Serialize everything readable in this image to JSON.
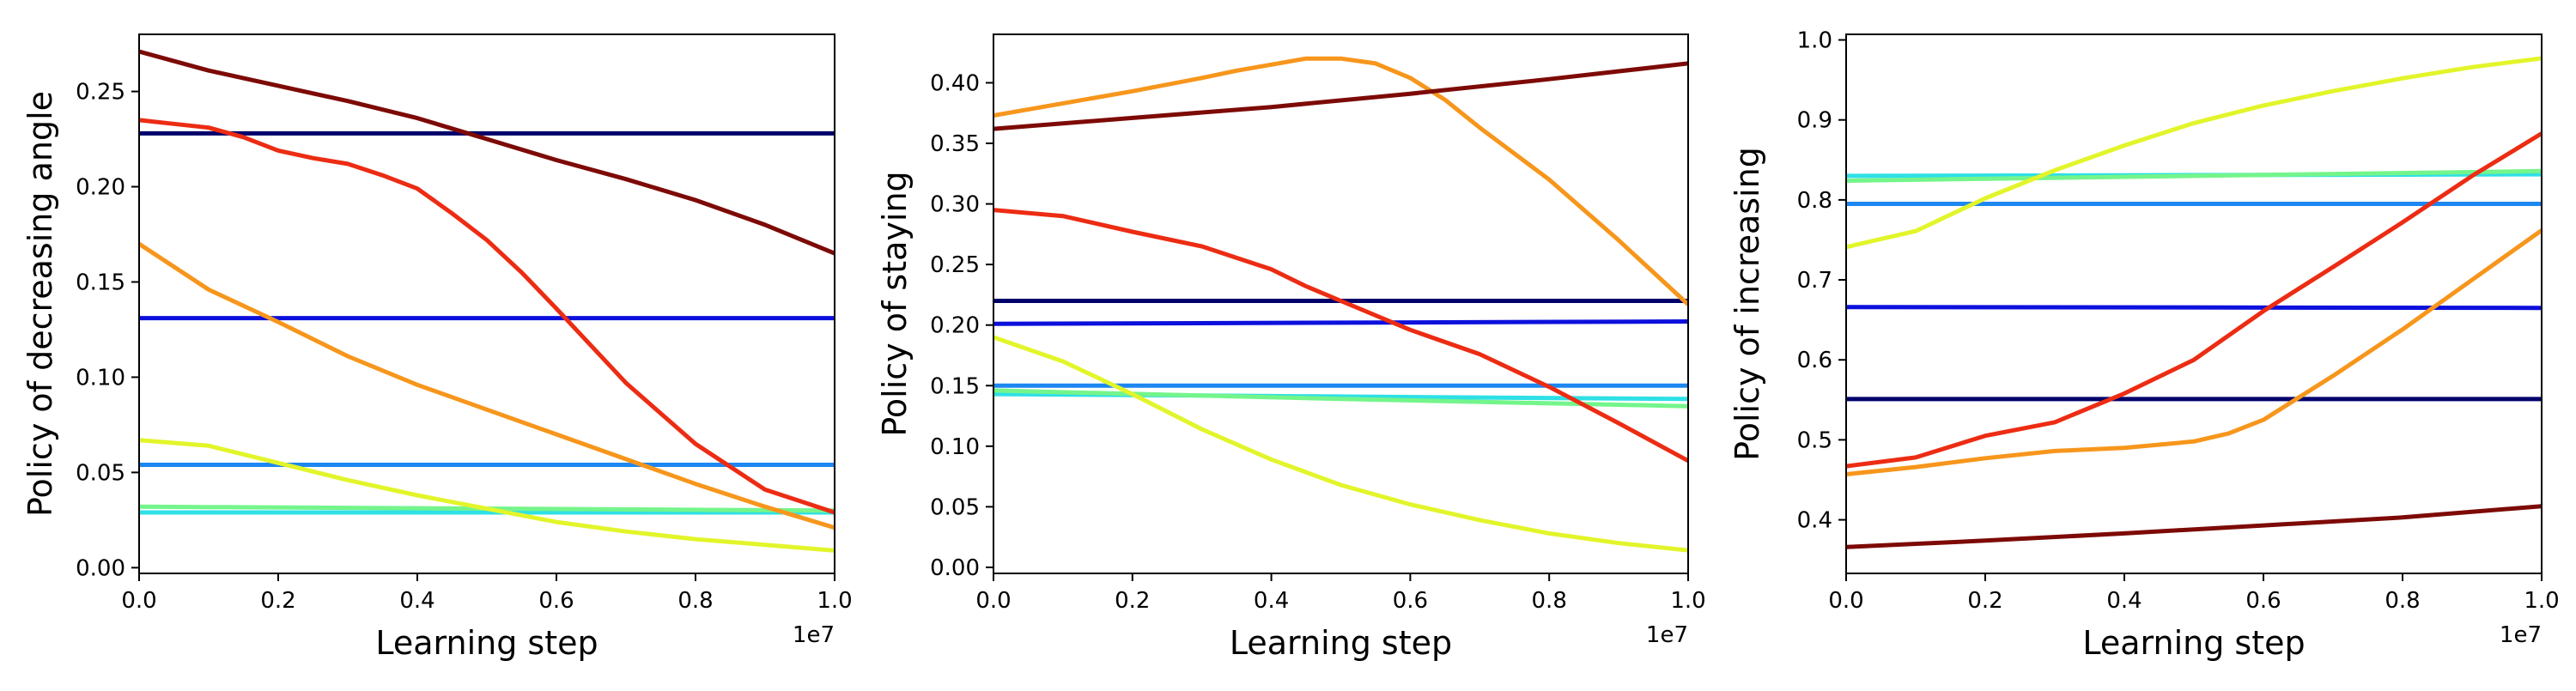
{
  "chart_data": [
    {
      "type": "line",
      "title": "",
      "xlabel": "Learning step",
      "ylabel": "Policy of decreasing angle",
      "x_offset_label": "1e7",
      "xlim": [
        0,
        1.0
      ],
      "ylim": [
        -0.003,
        0.28
      ],
      "xticks": [
        "0.0",
        "0.2",
        "0.4",
        "0.6",
        "0.8",
        "1.0"
      ],
      "yticks": [
        "0.00",
        "0.05",
        "0.10",
        "0.15",
        "0.20",
        "0.25"
      ],
      "grid": false,
      "series": [
        {
          "color": "#00006b",
          "x": [
            0,
            1.0
          ],
          "y": [
            0.228,
            0.228
          ]
        },
        {
          "color": "#0c10dc",
          "x": [
            0,
            1.0
          ],
          "y": [
            0.131,
            0.131
          ]
        },
        {
          "color": "#1d87f2",
          "x": [
            0,
            1.0
          ],
          "y": [
            0.054,
            0.054
          ]
        },
        {
          "color": "#2ee0e6",
          "x": [
            0,
            1.0
          ],
          "y": [
            0.029,
            0.029
          ]
        },
        {
          "color": "#74f58b",
          "x": [
            0,
            1.0
          ],
          "y": [
            0.032,
            0.03
          ]
        },
        {
          "color": "#e2f52a",
          "x": [
            0,
            0.1,
            0.2,
            0.3,
            0.4,
            0.5,
            0.6,
            0.7,
            0.8,
            0.9,
            1.0
          ],
          "y": [
            0.067,
            0.064,
            0.055,
            0.046,
            0.038,
            0.031,
            0.024,
            0.019,
            0.015,
            0.012,
            0.009
          ]
        },
        {
          "color": "#f7961c",
          "x": [
            0,
            0.1,
            0.2,
            0.3,
            0.4,
            0.5,
            0.6,
            0.7,
            0.8,
            0.9,
            1.0
          ],
          "y": [
            0.17,
            0.146,
            0.129,
            0.111,
            0.096,
            0.083,
            0.07,
            0.057,
            0.044,
            0.032,
            0.021
          ]
        },
        {
          "color": "#ec2c13",
          "x": [
            0,
            0.05,
            0.1,
            0.15,
            0.2,
            0.25,
            0.3,
            0.35,
            0.4,
            0.45,
            0.5,
            0.55,
            0.6,
            0.7,
            0.8,
            0.9,
            1.0
          ],
          "y": [
            0.235,
            0.233,
            0.231,
            0.226,
            0.219,
            0.215,
            0.212,
            0.206,
            0.199,
            0.186,
            0.172,
            0.155,
            0.136,
            0.097,
            0.065,
            0.041,
            0.029
          ]
        },
        {
          "color": "#7d0a06",
          "x": [
            0,
            0.1,
            0.2,
            0.3,
            0.4,
            0.5,
            0.6,
            0.7,
            0.8,
            0.9,
            1.0
          ],
          "y": [
            0.271,
            0.261,
            0.253,
            0.245,
            0.236,
            0.225,
            0.214,
            0.204,
            0.193,
            0.18,
            0.165
          ]
        }
      ]
    },
    {
      "type": "line",
      "title": "",
      "xlabel": "Learning step",
      "ylabel": "Policy of staying",
      "x_offset_label": "1e7",
      "xlim": [
        0,
        1.0
      ],
      "ylim": [
        -0.005,
        0.44
      ],
      "xticks": [
        "0.0",
        "0.2",
        "0.4",
        "0.6",
        "0.8",
        "1.0"
      ],
      "yticks": [
        "0.00",
        "0.05",
        "0.10",
        "0.15",
        "0.20",
        "0.25",
        "0.30",
        "0.35",
        "0.40"
      ],
      "grid": false,
      "series": [
        {
          "color": "#00006b",
          "x": [
            0,
            1.0
          ],
          "y": [
            0.22,
            0.22
          ]
        },
        {
          "color": "#0c10dc",
          "x": [
            0,
            1.0
          ],
          "y": [
            0.201,
            0.203
          ]
        },
        {
          "color": "#1d87f2",
          "x": [
            0,
            1.0
          ],
          "y": [
            0.15,
            0.15
          ]
        },
        {
          "color": "#2ee0e6",
          "x": [
            0,
            1.0
          ],
          "y": [
            0.143,
            0.139
          ]
        },
        {
          "color": "#74f58b",
          "x": [
            0,
            0.5,
            1.0
          ],
          "y": [
            0.146,
            0.139,
            0.133
          ]
        },
        {
          "color": "#e2f52a",
          "x": [
            0,
            0.1,
            0.2,
            0.3,
            0.4,
            0.5,
            0.6,
            0.7,
            0.8,
            0.9,
            1.0
          ],
          "y": [
            0.19,
            0.17,
            0.143,
            0.114,
            0.089,
            0.068,
            0.052,
            0.039,
            0.028,
            0.02,
            0.014
          ]
        },
        {
          "color": "#f7961c",
          "x": [
            0,
            0.1,
            0.2,
            0.3,
            0.35,
            0.4,
            0.45,
            0.5,
            0.55,
            0.6,
            0.65,
            0.7,
            0.8,
            0.9,
            1.0
          ],
          "y": [
            0.373,
            0.383,
            0.393,
            0.404,
            0.41,
            0.415,
            0.42,
            0.42,
            0.416,
            0.404,
            0.386,
            0.363,
            0.32,
            0.27,
            0.217
          ]
        },
        {
          "color": "#ec2c13",
          "x": [
            0,
            0.1,
            0.2,
            0.3,
            0.4,
            0.45,
            0.5,
            0.6,
            0.7,
            0.8,
            0.9,
            1.0
          ],
          "y": [
            0.295,
            0.29,
            0.277,
            0.265,
            0.246,
            0.232,
            0.22,
            0.196,
            0.176,
            0.149,
            0.119,
            0.088
          ]
        },
        {
          "color": "#7d0a06",
          "x": [
            0,
            0.2,
            0.4,
            0.6,
            0.8,
            1.0
          ],
          "y": [
            0.362,
            0.371,
            0.38,
            0.391,
            0.403,
            0.416
          ]
        }
      ]
    },
    {
      "type": "line",
      "title": "",
      "xlabel": "Learning step",
      "ylabel": "Policy of increasing",
      "x_offset_label": "1e7",
      "xlim": [
        0,
        1.0
      ],
      "ylim": [
        0.333,
        1.007
      ],
      "xticks": [
        "0.0",
        "0.2",
        "0.4",
        "0.6",
        "0.8",
        "1.0"
      ],
      "yticks": [
        "0.4",
        "0.5",
        "0.6",
        "0.7",
        "0.8",
        "0.9",
        "1.0"
      ],
      "grid": false,
      "series": [
        {
          "color": "#00006b",
          "x": [
            0,
            1.0
          ],
          "y": [
            0.551,
            0.551
          ]
        },
        {
          "color": "#0c10dc",
          "x": [
            0,
            1.0
          ],
          "y": [
            0.666,
            0.665
          ]
        },
        {
          "color": "#1d87f2",
          "x": [
            0,
            1.0
          ],
          "y": [
            0.795,
            0.795
          ]
        },
        {
          "color": "#2ee0e6",
          "x": [
            0,
            1.0
          ],
          "y": [
            0.83,
            0.832
          ]
        },
        {
          "color": "#74f58b",
          "x": [
            0,
            0.5,
            1.0
          ],
          "y": [
            0.824,
            0.83,
            0.836
          ]
        },
        {
          "color": "#e2f52a",
          "x": [
            0,
            0.1,
            0.2,
            0.3,
            0.4,
            0.5,
            0.6,
            0.7,
            0.8,
            0.9,
            1.0
          ],
          "y": [
            0.741,
            0.761,
            0.802,
            0.837,
            0.868,
            0.896,
            0.918,
            0.936,
            0.952,
            0.966,
            0.977
          ]
        },
        {
          "color": "#f7961c",
          "x": [
            0,
            0.1,
            0.2,
            0.3,
            0.4,
            0.5,
            0.55,
            0.6,
            0.7,
            0.8,
            0.9,
            1.0
          ],
          "y": [
            0.457,
            0.466,
            0.477,
            0.486,
            0.49,
            0.498,
            0.508,
            0.525,
            0.58,
            0.638,
            0.7,
            0.762
          ]
        },
        {
          "color": "#ec2c13",
          "x": [
            0,
            0.1,
            0.2,
            0.3,
            0.4,
            0.5,
            0.6,
            0.7,
            0.8,
            0.9,
            1.0
          ],
          "y": [
            0.467,
            0.478,
            0.505,
            0.522,
            0.558,
            0.6,
            0.661,
            0.716,
            0.772,
            0.83,
            0.883
          ]
        },
        {
          "color": "#7d0a06",
          "x": [
            0,
            0.2,
            0.4,
            0.6,
            0.8,
            1.0
          ],
          "y": [
            0.366,
            0.374,
            0.383,
            0.393,
            0.403,
            0.417
          ]
        }
      ]
    }
  ]
}
